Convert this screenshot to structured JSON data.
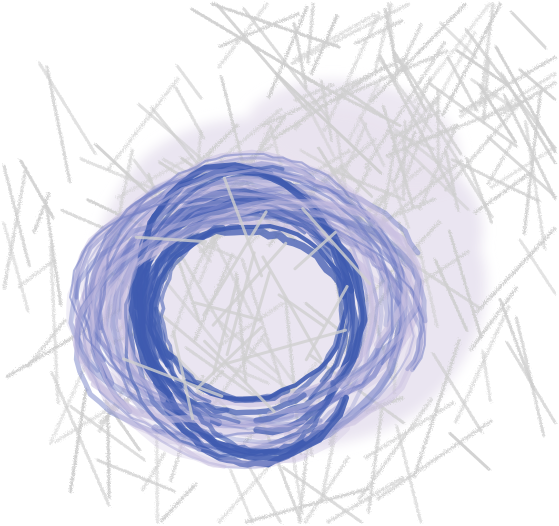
{
  "artwork": {
    "colors": {
      "background": "#ffffff",
      "line_lattice": "#cfcfcf",
      "wash_light": "#e8e2ef",
      "wash_medium": "#c9bfe0",
      "swirl_dark": "#3f5bb0",
      "swirl_mid": "#6f7cc4"
    }
  }
}
